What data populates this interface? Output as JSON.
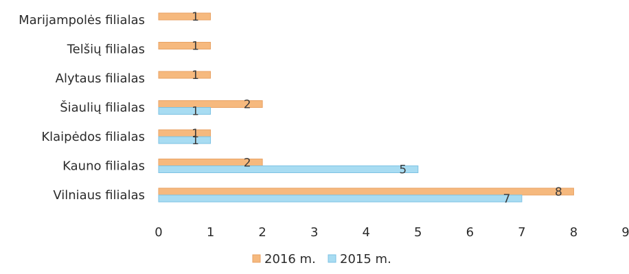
{
  "chart_data": {
    "type": "bar",
    "orientation": "horizontal",
    "categories": [
      "Marijampolės filialas",
      "Telšių filialas",
      "Alytaus filialas",
      "Šiaulių filialas",
      "Klaipėdos filialas",
      "Kauno filialas",
      "Vilniaus filialas"
    ],
    "series": [
      {
        "name": "2016 m.",
        "color": "#f6b97e",
        "values": [
          1,
          1,
          1,
          2,
          1,
          2,
          8
        ]
      },
      {
        "name": "2015 m.",
        "color": "#a8dcf2",
        "values": [
          null,
          null,
          null,
          1,
          1,
          5,
          7
        ]
      }
    ],
    "xlim": [
      0,
      9
    ],
    "xticks": [
      0,
      1,
      2,
      3,
      4,
      5,
      6,
      7,
      8,
      9
    ],
    "grid": false,
    "legend_position": "bottom",
    "data_labels": true
  }
}
